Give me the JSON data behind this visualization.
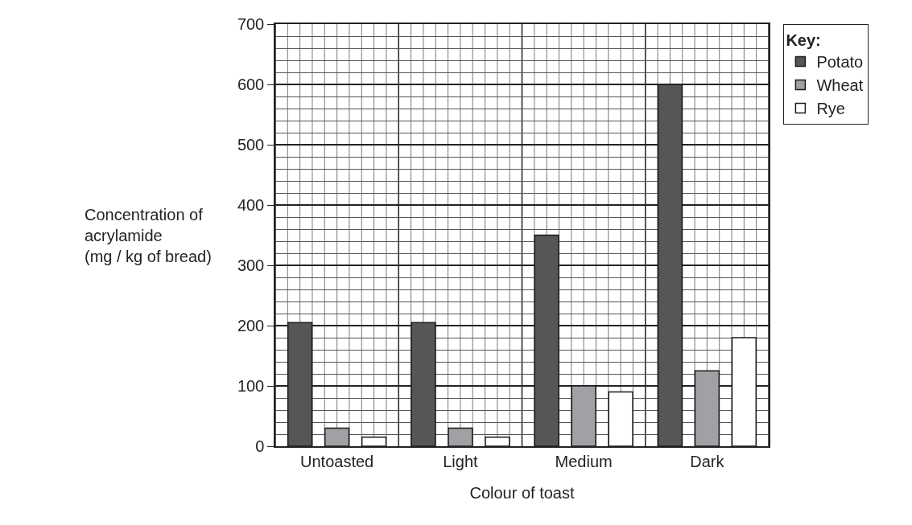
{
  "chart_data": {
    "type": "bar",
    "xlabel": "Colour of toast",
    "ylabel": "Concentration of\nacrylamide\n(mg / kg of bread)",
    "legend_title": "Key:",
    "categories": [
      "Untoasted",
      "Light",
      "Medium",
      "Dark"
    ],
    "series": [
      {
        "name": "Potato",
        "color": "#555658",
        "values": [
          205,
          205,
          350,
          600
        ]
      },
      {
        "name": "Wheat",
        "color": "#a0a1a4",
        "values": [
          30,
          30,
          100,
          125
        ]
      },
      {
        "name": "Rye",
        "color": "#ffffff",
        "values": [
          15,
          15,
          90,
          180
        ]
      }
    ],
    "ylim": [
      0,
      700
    ],
    "yticks": [
      0,
      100,
      200,
      300,
      400,
      500,
      600,
      700
    ],
    "grid": true,
    "legend": "top right"
  }
}
